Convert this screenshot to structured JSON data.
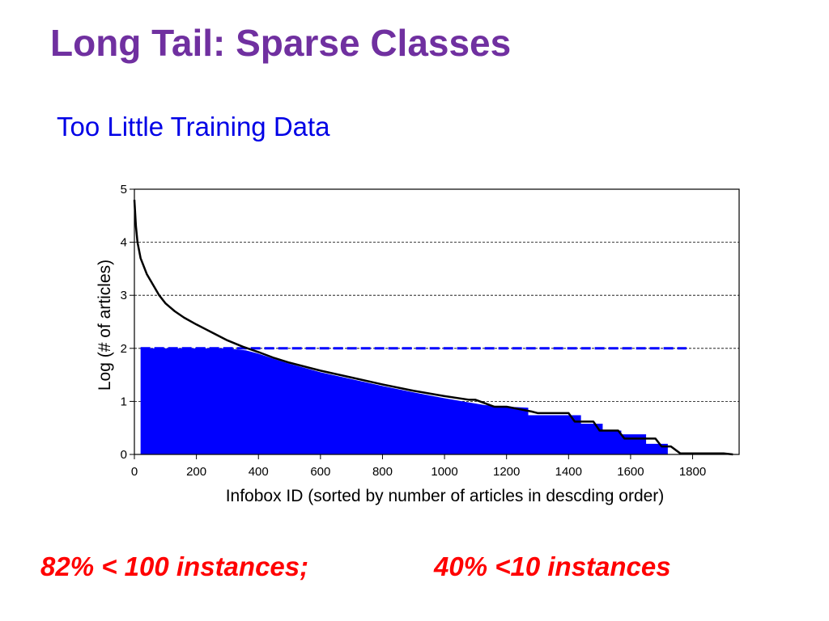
{
  "slide": {
    "title": "Long Tail: Sparse Classes",
    "subtitle": "Too Little Training Data"
  },
  "footer": {
    "left_note": "82% < 100 instances;",
    "right_note": "40% <10 instances"
  },
  "colors": {
    "title": "#7030A0",
    "subtitle": "#0000E6",
    "footer": "#FF0000",
    "bars": "#0000FF",
    "threshold_line": "#0000FF",
    "curve": "#000000"
  },
  "chart_data": {
    "type": "line",
    "title": "",
    "xlabel": "Infobox  ID (sorted by number of articles in descding order)",
    "ylabel": "Log (# of articles)",
    "xlim": [
      0,
      1950
    ],
    "ylim": [
      0,
      5
    ],
    "x_ticks": [
      0,
      200,
      400,
      600,
      800,
      1000,
      1200,
      1400,
      1600,
      1800
    ],
    "y_ticks": [
      0,
      1,
      2,
      3,
      4,
      5
    ],
    "grid": "horizontal dashed at y=1,2,3,4",
    "series": [
      {
        "kind": "line",
        "x": [
          0,
          5,
          10,
          20,
          40,
          60,
          80,
          100,
          130,
          160,
          200,
          250,
          300,
          350,
          400,
          450,
          500,
          600,
          700,
          800,
          900,
          1000,
          1080,
          1100,
          1160,
          1200,
          1280,
          1300,
          1400,
          1420,
          1480,
          1500,
          1560,
          1580,
          1680,
          1700,
          1730,
          1760,
          1800,
          1850,
          1900,
          1930
        ],
        "y": [
          4.8,
          4.3,
          4.0,
          3.7,
          3.4,
          3.2,
          3.0,
          2.85,
          2.7,
          2.58,
          2.45,
          2.3,
          2.15,
          2.03,
          1.93,
          1.82,
          1.73,
          1.58,
          1.45,
          1.32,
          1.2,
          1.1,
          1.03,
          1.03,
          0.9,
          0.9,
          0.81,
          0.78,
          0.78,
          0.62,
          0.62,
          0.45,
          0.45,
          0.3,
          0.3,
          0.15,
          0.15,
          0.02,
          0.02,
          0.02,
          0.02,
          0.0
        ]
      },
      {
        "kind": "filled-area",
        "x": [
          20,
          300,
          330,
          360,
          400,
          450,
          500,
          600,
          700,
          800,
          900,
          1000,
          1080,
          1130,
          1200,
          1270,
          1270,
          1440,
          1440,
          1510,
          1510,
          1570,
          1570,
          1650,
          1650,
          1720,
          1720,
          1780
        ],
        "y": [
          2.0,
          2.0,
          1.98,
          1.96,
          1.9,
          1.8,
          1.71,
          1.55,
          1.42,
          1.29,
          1.17,
          1.06,
          0.98,
          0.93,
          0.9,
          0.88,
          0.74,
          0.74,
          0.58,
          0.58,
          0.45,
          0.45,
          0.38,
          0.38,
          0.2,
          0.2,
          0.0,
          0.0
        ]
      }
    ],
    "threshold": {
      "y": 2.0,
      "x_start": 20,
      "x_end": 1780,
      "style": "dashed"
    }
  }
}
